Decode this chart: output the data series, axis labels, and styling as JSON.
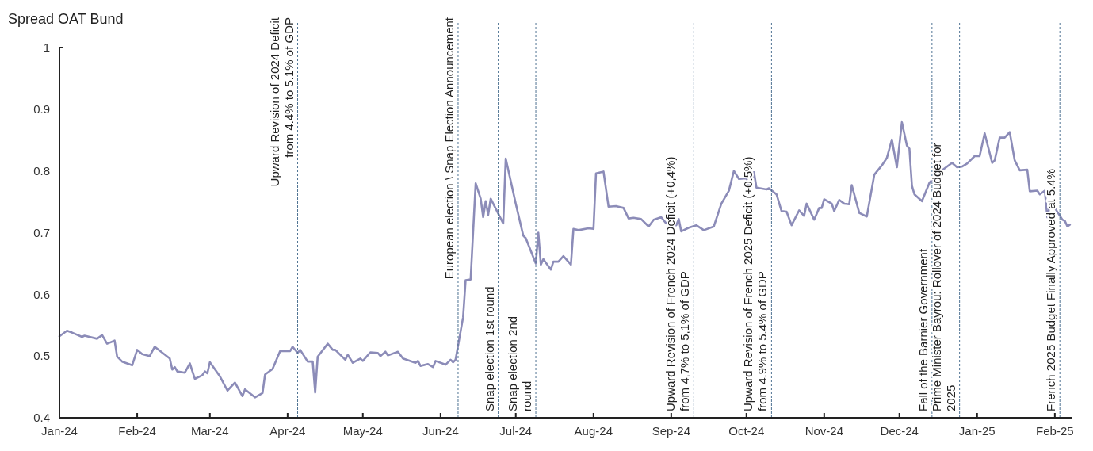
{
  "chart_data": {
    "type": "line",
    "title": "Spread OAT Bund",
    "x": [
      "2024-01-01",
      "2024-01-04",
      "2024-01-06",
      "2024-01-10",
      "2024-01-11",
      "2024-01-16",
      "2024-01-18",
      "2024-01-20",
      "2024-01-23",
      "2024-01-24",
      "2024-01-26",
      "2024-01-30",
      "2024-02-01",
      "2024-02-03",
      "2024-02-06",
      "2024-02-08",
      "2024-02-14",
      "2024-02-15",
      "2024-02-16",
      "2024-02-17",
      "2024-02-20",
      "2024-02-22",
      "2024-02-24",
      "2024-02-27",
      "2024-02-28",
      "2024-02-29",
      "2024-03-01",
      "2024-03-05",
      "2024-03-08",
      "2024-03-11",
      "2024-03-14",
      "2024-03-15",
      "2024-03-19",
      "2024-03-22",
      "2024-03-23",
      "2024-03-26",
      "2024-03-29",
      "2024-04-02",
      "2024-04-03",
      "2024-04-05",
      "2024-04-06",
      "2024-04-09",
      "2024-04-11",
      "2024-04-12",
      "2024-04-13",
      "2024-04-17",
      "2024-04-19",
      "2024-04-20",
      "2024-04-24",
      "2024-04-25",
      "2024-04-27",
      "2024-04-30",
      "2024-05-01",
      "2024-05-04",
      "2024-05-07",
      "2024-05-08",
      "2024-05-10",
      "2024-05-11",
      "2024-05-15",
      "2024-05-17",
      "2024-05-22",
      "2024-05-23",
      "2024-05-24",
      "2024-05-27",
      "2024-05-29",
      "2024-05-30",
      "2024-06-03",
      "2024-06-05",
      "2024-06-06",
      "2024-06-07",
      "2024-06-10",
      "2024-06-11",
      "2024-06-13",
      "2024-06-15",
      "2024-06-17",
      "2024-06-18",
      "2024-06-19",
      "2024-06-20",
      "2024-06-21",
      "2024-06-26",
      "2024-06-27",
      "2024-07-01",
      "2024-07-04",
      "2024-07-05",
      "2024-07-09",
      "2024-07-10",
      "2024-07-11",
      "2024-07-12",
      "2024-07-15",
      "2024-07-16",
      "2024-07-18",
      "2024-07-20",
      "2024-07-23",
      "2024-07-24",
      "2024-07-26",
      "2024-07-30",
      "2024-08-01",
      "2024-08-02",
      "2024-08-05",
      "2024-08-07",
      "2024-08-10",
      "2024-08-13",
      "2024-08-15",
      "2024-08-17",
      "2024-08-20",
      "2024-08-23",
      "2024-08-25",
      "2024-08-28",
      "2024-08-30",
      "2024-09-03",
      "2024-09-04",
      "2024-09-05",
      "2024-09-08",
      "2024-09-11",
      "2024-09-14",
      "2024-09-18",
      "2024-09-21",
      "2024-09-24",
      "2024-09-26",
      "2024-09-28",
      "2024-10-01",
      "2024-10-02",
      "2024-10-04",
      "2024-10-05",
      "2024-10-09",
      "2024-10-10",
      "2024-10-13",
      "2024-10-15",
      "2024-10-17",
      "2024-10-19",
      "2024-10-22",
      "2024-10-24",
      "2024-10-25",
      "2024-10-28",
      "2024-10-30",
      "2024-10-31",
      "2024-11-01",
      "2024-11-04",
      "2024-11-05",
      "2024-11-07",
      "2024-11-09",
      "2024-11-11",
      "2024-11-12",
      "2024-11-15",
      "2024-11-18",
      "2024-11-21",
      "2024-11-24",
      "2024-11-26",
      "2024-11-28",
      "2024-11-30",
      "2024-12-02",
      "2024-12-04",
      "2024-12-05",
      "2024-12-06",
      "2024-12-07",
      "2024-12-10",
      "2024-12-13",
      "2024-12-17",
      "2024-12-19",
      "2024-12-22",
      "2024-12-24",
      "2024-12-26",
      "2024-12-28",
      "2024-12-31",
      "2025-01-02",
      "2025-01-04",
      "2025-01-07",
      "2025-01-08",
      "2025-01-10",
      "2025-01-12",
      "2025-01-14",
      "2025-01-16",
      "2025-01-18",
      "2025-01-21",
      "2025-01-22",
      "2025-01-25",
      "2025-01-26",
      "2025-01-28",
      "2025-01-29",
      "2025-01-30",
      "2025-02-01",
      "2025-02-04",
      "2025-02-05",
      "2025-02-06",
      "2025-02-07"
    ],
    "series": [
      {
        "color": "#8c8cb8",
        "values": [
          0.532,
          0.541,
          0.538,
          0.531,
          0.533,
          0.528,
          0.534,
          0.52,
          0.525,
          0.499,
          0.491,
          0.485,
          0.51,
          0.503,
          0.5,
          0.515,
          0.496,
          0.478,
          0.482,
          0.475,
          0.473,
          0.488,
          0.463,
          0.469,
          0.475,
          0.472,
          0.49,
          0.467,
          0.444,
          0.457,
          0.435,
          0.446,
          0.433,
          0.44,
          0.47,
          0.479,
          0.508,
          0.508,
          0.515,
          0.505,
          0.51,
          0.491,
          0.491,
          0.441,
          0.499,
          0.52,
          0.51,
          0.51,
          0.494,
          0.502,
          0.489,
          0.496,
          0.492,
          0.506,
          0.505,
          0.5,
          0.507,
          0.501,
          0.507,
          0.496,
          0.489,
          0.492,
          0.484,
          0.487,
          0.482,
          0.492,
          0.486,
          0.494,
          0.49,
          0.494,
          0.563,
          0.623,
          0.624,
          0.78,
          0.755,
          0.725,
          0.751,
          0.729,
          0.755,
          0.715,
          0.82,
          0.747,
          0.695,
          0.691,
          0.65,
          0.7,
          0.648,
          0.657,
          0.64,
          0.653,
          0.653,
          0.662,
          0.648,
          0.706,
          0.704,
          0.707,
          0.706,
          0.796,
          0.799,
          0.742,
          0.743,
          0.74,
          0.723,
          0.724,
          0.722,
          0.71,
          0.721,
          0.725,
          0.715,
          0.712,
          0.722,
          0.702,
          0.708,
          0.712,
          0.704,
          0.71,
          0.747,
          0.768,
          0.8,
          0.787,
          0.788,
          0.772,
          0.798,
          0.773,
          0.77,
          0.772,
          0.762,
          0.735,
          0.734,
          0.712,
          0.736,
          0.727,
          0.747,
          0.721,
          0.74,
          0.74,
          0.754,
          0.747,
          0.735,
          0.753,
          0.747,
          0.746,
          0.777,
          0.732,
          0.726,
          0.794,
          0.809,
          0.821,
          0.851,
          0.806,
          0.879,
          0.841,
          0.836,
          0.776,
          0.762,
          0.751,
          0.781,
          0.798,
          0.804,
          0.813,
          0.806,
          0.807,
          0.812,
          0.824,
          0.824,
          0.861,
          0.813,
          0.817,
          0.854,
          0.854,
          0.863,
          0.817,
          0.801,
          0.802,
          0.767,
          0.768,
          0.762,
          0.768,
          0.725,
          0.744,
          0.74,
          0.721,
          0.719,
          0.71,
          0.713
        ]
      }
    ],
    "xlim": [
      "2024-01-01",
      "2025-02-08"
    ],
    "xticks": [
      {
        "value": "2024-01-01",
        "label": "Jan-24"
      },
      {
        "value": "2024-02-01",
        "label": "Feb-24"
      },
      {
        "value": "2024-03-01",
        "label": "Mar-24"
      },
      {
        "value": "2024-04-01",
        "label": "Apr-24"
      },
      {
        "value": "2024-05-01",
        "label": "May-24"
      },
      {
        "value": "2024-06-01",
        "label": "Jun-24"
      },
      {
        "value": "2024-07-01",
        "label": "Jul-24"
      },
      {
        "value": "2024-08-01",
        "label": "Aug-24"
      },
      {
        "value": "2024-09-01",
        "label": "Sep-24"
      },
      {
        "value": "2024-10-01",
        "label": "Oct-24"
      },
      {
        "value": "2024-11-01",
        "label": "Nov-24"
      },
      {
        "value": "2024-12-01",
        "label": "Dec-24"
      },
      {
        "value": "2025-01-01",
        "label": "Jan-25"
      },
      {
        "value": "2025-02-01",
        "label": "Feb-25"
      }
    ],
    "ylim": [
      0.4,
      1
    ],
    "yticks": [
      0.4,
      0.5,
      0.6,
      0.7,
      0.8,
      0.9,
      1
    ],
    "grid": false,
    "marker": "none",
    "line_style": "solid",
    "ref_lines": [
      {
        "axis": "x",
        "value": "2024-04-05",
        "label": "Upward Revision of 2024 Deficit\nfrom 4.4% to 5.1% of GDP",
        "color": "#4f7393",
        "line_style": "dashed"
      },
      {
        "axis": "x",
        "value": "2024-06-08",
        "label": "European election \\ Snap Election Announcement",
        "color": "#4f7393",
        "line_style": "dashed"
      },
      {
        "axis": "x",
        "value": "2024-06-24",
        "label": "Snap election 1st round",
        "color": "#4f7393",
        "line_style": "dashed"
      },
      {
        "axis": "x",
        "value": "2024-07-09",
        "label": "Snap election 2nd\nround",
        "color": "#4f7393",
        "line_style": "dashed"
      },
      {
        "axis": "x",
        "value": "2024-09-10",
        "label": "Upward Revision of French 2024 Deficit (+0,4%)\nfrom 4,7% to 5,1% of GDP",
        "color": "#4f7393",
        "line_style": "dashed"
      },
      {
        "axis": "x",
        "value": "2024-10-11",
        "label": "Upward Revision of French 2025 Deficit (+0.5%)\nfrom 4.9% to 5.4% of GDP",
        "color": "#4f7393",
        "line_style": "dashed"
      },
      {
        "axis": "x",
        "value": "2024-12-14",
        "label": "Fall of the Barnier Government",
        "color": "#4f7393",
        "line_style": "dashed"
      },
      {
        "axis": "x",
        "value": "2024-12-25",
        "label": "Prime Minister Bayrou: Rollover of 2024 Budget for\n2025",
        "color": "#4f7393",
        "line_style": "dashed"
      },
      {
        "axis": "x",
        "value": "2025-02-03",
        "label": "French 2025 Budget Finally Approved at 5.4%",
        "color": "#4f7393",
        "line_style": "dashed"
      }
    ]
  }
}
